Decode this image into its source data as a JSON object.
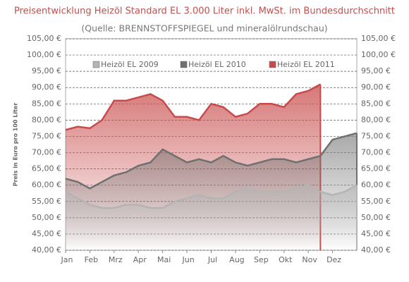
{
  "chart_data": {
    "type": "area",
    "title": "Preisentwicklung Heizöl Standard EL 3.000 Liter inkl. MwSt. im Bundesdurchschnitt",
    "subtitle": "(Quelle: BRENNSTOFFSPIEGEL  und mineralölrundschau)",
    "y_label": "Preis in Euro pro 100 Liter",
    "x": [
      0,
      0.5,
      1,
      1.5,
      2,
      2.5,
      3,
      3.5,
      4,
      4.5,
      5,
      5.5,
      6,
      6.5,
      7,
      7.5,
      8,
      8.5,
      9,
      9.5,
      10,
      10.5,
      11,
      11.5,
      12
    ],
    "xlim": [
      0,
      12
    ],
    "xticks": [
      {
        "value": 0,
        "label": "Jan"
      },
      {
        "value": 1,
        "label": "Feb"
      },
      {
        "value": 2,
        "label": "Mrz"
      },
      {
        "value": 3,
        "label": "Apr"
      },
      {
        "value": 4,
        "label": "Mai"
      },
      {
        "value": 5,
        "label": "Jun"
      },
      {
        "value": 6,
        "label": "Jul"
      },
      {
        "value": 7,
        "label": "Aug"
      },
      {
        "value": 8,
        "label": "Sep"
      },
      {
        "value": 9,
        "label": "Okt"
      },
      {
        "value": 10,
        "label": "Nov"
      },
      {
        "value": 11,
        "label": "Dez"
      }
    ],
    "ylim": [
      40,
      105
    ],
    "yticks": [
      {
        "value": 40,
        "label": "40,00 €"
      },
      {
        "value": 45,
        "label": "45,00 €"
      },
      {
        "value": 50,
        "label": "50,00 €"
      },
      {
        "value": 55,
        "label": "55,00 €"
      },
      {
        "value": 60,
        "label": "60,00 €"
      },
      {
        "value": 65,
        "label": "65,00 €"
      },
      {
        "value": 70,
        "label": "70,00 €"
      },
      {
        "value": 75,
        "label": "75,00 €"
      },
      {
        "value": 80,
        "label": "80,00 €"
      },
      {
        "value": 85,
        "label": "85,00 €"
      },
      {
        "value": 90,
        "label": "90,00 €"
      },
      {
        "value": 95,
        "label": "95,00 €"
      },
      {
        "value": 100,
        "label": "100,00 €"
      },
      {
        "value": 105,
        "label": "105,00 €"
      }
    ],
    "grid": true,
    "legend": "top",
    "series": [
      {
        "name": "Heizöl EL 2011",
        "color": "#c84a4a",
        "values": [
          77,
          78,
          77.5,
          80,
          86,
          86,
          87,
          88,
          86,
          81,
          81,
          80,
          85,
          84,
          81,
          82,
          85,
          85,
          84,
          88,
          89,
          91,
          null,
          null,
          null
        ]
      },
      {
        "name": "Heizöl EL 2010",
        "color": "#707070",
        "values": [
          62,
          61,
          59,
          61,
          63,
          64,
          66,
          67,
          71,
          69,
          67,
          68,
          67,
          69,
          67,
          66,
          67,
          68,
          68,
          67,
          68,
          69,
          74,
          75,
          76
        ]
      },
      {
        "name": "Heizöl EL 2009",
        "color": "#b4b4b4",
        "values": [
          58,
          56,
          54,
          53,
          53,
          54,
          54,
          53,
          53,
          55,
          56,
          57,
          56,
          56,
          58,
          59,
          58,
          58,
          58,
          59,
          60,
          58,
          57,
          58,
          60
        ]
      }
    ]
  }
}
